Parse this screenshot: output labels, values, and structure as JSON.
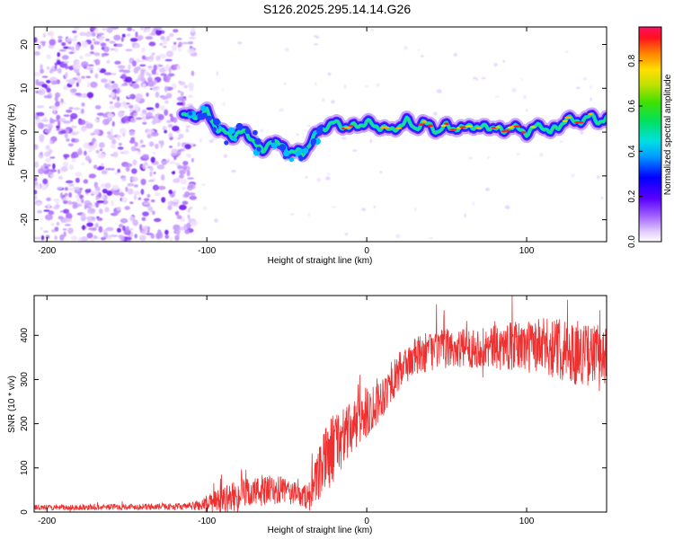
{
  "figure_title": "S126.2025.295.14.14.G26",
  "chart_data": [
    {
      "type": "heatmap",
      "title": "S126.2025.295.14.14.G26",
      "xlabel": "Height of straight line (km)",
      "ylabel": "Frequency (Hz)",
      "xlim": [
        -208,
        150
      ],
      "ylim": [
        -25,
        24
      ],
      "xticks": [
        -200,
        -100,
        0,
        100
      ],
      "yticks": [
        -20,
        -10,
        0,
        10,
        20
      ],
      "colorbar": {
        "label": "Normalized spectral amplitude",
        "range": [
          0,
          0.95
        ],
        "ticks": [
          "0.0",
          "0.2",
          "0.4",
          "0.6",
          "0.8"
        ]
      },
      "noise_region": {
        "x_from": -208,
        "x_to": -112,
        "description": "scattered noise"
      },
      "ridge_series": {
        "name": "dominant frequency",
        "x": [
          -115,
          -110,
          -105,
          -100,
          -95,
          -90,
          -85,
          -80,
          -75,
          -70,
          -65,
          -60,
          -55,
          -50,
          -45,
          -40,
          -35,
          -30,
          -25,
          -20,
          -15,
          -10,
          -5,
          0,
          5,
          10,
          15,
          20,
          25,
          30,
          35,
          40,
          45,
          50,
          55,
          60,
          65,
          70,
          75,
          80,
          85,
          90,
          95,
          100,
          105,
          110,
          115,
          120,
          125,
          130,
          135,
          140,
          145,
          150
        ],
        "y": [
          4,
          3.5,
          4,
          4.5,
          1.5,
          0,
          -1,
          0,
          -0.5,
          -2,
          -5,
          -1.5,
          -3,
          -4,
          -4.5,
          -5,
          -2,
          0,
          1.5,
          2,
          1.5,
          1,
          1.5,
          2.5,
          1,
          1.5,
          0,
          1.5,
          2.5,
          1,
          2,
          1.5,
          0,
          1.5,
          1,
          0.5,
          2,
          0.5,
          1.5,
          1,
          0,
          1.5,
          0.5,
          0,
          1,
          1.5,
          0,
          1,
          3.5,
          2,
          3,
          3.5,
          2.5,
          3
        ]
      }
    },
    {
      "type": "line",
      "xlabel": "Height of straight line (km)",
      "ylabel": "SNR (10 * v/v)",
      "xlim": [
        -208,
        150
      ],
      "ylim": [
        0,
        490
      ],
      "xticks": [
        -200,
        -100,
        0,
        100
      ],
      "yticks": [
        0,
        100,
        200,
        300,
        400
      ],
      "series": [
        {
          "name": "SNR",
          "color": "#ee3030",
          "x": [
            -208,
            -190,
            -170,
            -150,
            -130,
            -110,
            -100,
            -90,
            -80,
            -70,
            -60,
            -50,
            -40,
            -35,
            -30,
            -25,
            -20,
            -15,
            -10,
            -5,
            0,
            5,
            10,
            15,
            20,
            25,
            30,
            40,
            50,
            60,
            70,
            80,
            90,
            100,
            110,
            120,
            130,
            140,
            150
          ],
          "trend": [
            10,
            10,
            11,
            12,
            12,
            13,
            18,
            28,
            38,
            45,
            48,
            48,
            35,
            40,
            80,
            125,
            150,
            170,
            185,
            205,
            225,
            245,
            265,
            290,
            315,
            335,
            350,
            365,
            370,
            370,
            372,
            372,
            375,
            375,
            375,
            370,
            360,
            355,
            360
          ],
          "noise": [
            6,
            6,
            7,
            7,
            7,
            8,
            20,
            30,
            35,
            35,
            35,
            30,
            25,
            40,
            60,
            80,
            80,
            70,
            60,
            60,
            60,
            55,
            50,
            45,
            45,
            45,
            45,
            45,
            45,
            45,
            45,
            50,
            55,
            60,
            65,
            70,
            70,
            70,
            70
          ]
        }
      ]
    }
  ]
}
